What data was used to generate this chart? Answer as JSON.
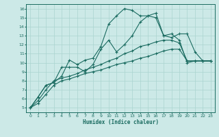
{
  "xlabel": "Humidex (Indice chaleur)",
  "xlim": [
    -0.5,
    23.5
  ],
  "ylim": [
    4.5,
    16.5
  ],
  "xticks": [
    0,
    1,
    2,
    3,
    4,
    5,
    6,
    7,
    8,
    9,
    10,
    11,
    12,
    13,
    14,
    15,
    16,
    17,
    18,
    19,
    20,
    21,
    22,
    23
  ],
  "yticks": [
    5,
    6,
    7,
    8,
    9,
    10,
    11,
    12,
    13,
    14,
    15,
    16
  ],
  "bg_color": "#cce9e7",
  "grid_color": "#aad4d0",
  "line_color": "#1a6b60",
  "series": [
    [
      5.0,
      6.2,
      7.5,
      7.8,
      8.5,
      10.3,
      9.8,
      10.3,
      10.5,
      11.8,
      14.3,
      15.2,
      16.0,
      15.8,
      15.2,
      15.2,
      15.5,
      13.0,
      12.8,
      13.2,
      13.2,
      11.2,
      10.2,
      10.2
    ],
    [
      5.0,
      6.2,
      7.5,
      7.8,
      9.5,
      9.5,
      9.5,
      9.0,
      9.8,
      11.5,
      12.5,
      11.2,
      12.0,
      13.0,
      14.5,
      15.2,
      15.0,
      13.0,
      13.2,
      12.5,
      10.0,
      10.2,
      10.2,
      10.2
    ],
    [
      5.0,
      5.8,
      7.0,
      8.0,
      8.3,
      8.5,
      8.8,
      9.2,
      9.5,
      9.8,
      10.2,
      10.5,
      11.0,
      11.3,
      11.8,
      12.0,
      12.3,
      12.5,
      12.5,
      12.2,
      10.2,
      10.2,
      10.2,
      10.2
    ],
    [
      5.0,
      5.5,
      6.5,
      7.5,
      8.0,
      8.2,
      8.5,
      8.8,
      9.0,
      9.2,
      9.5,
      9.8,
      10.0,
      10.2,
      10.5,
      10.7,
      11.0,
      11.3,
      11.5,
      11.5,
      10.2,
      10.2,
      10.2,
      10.2
    ]
  ]
}
